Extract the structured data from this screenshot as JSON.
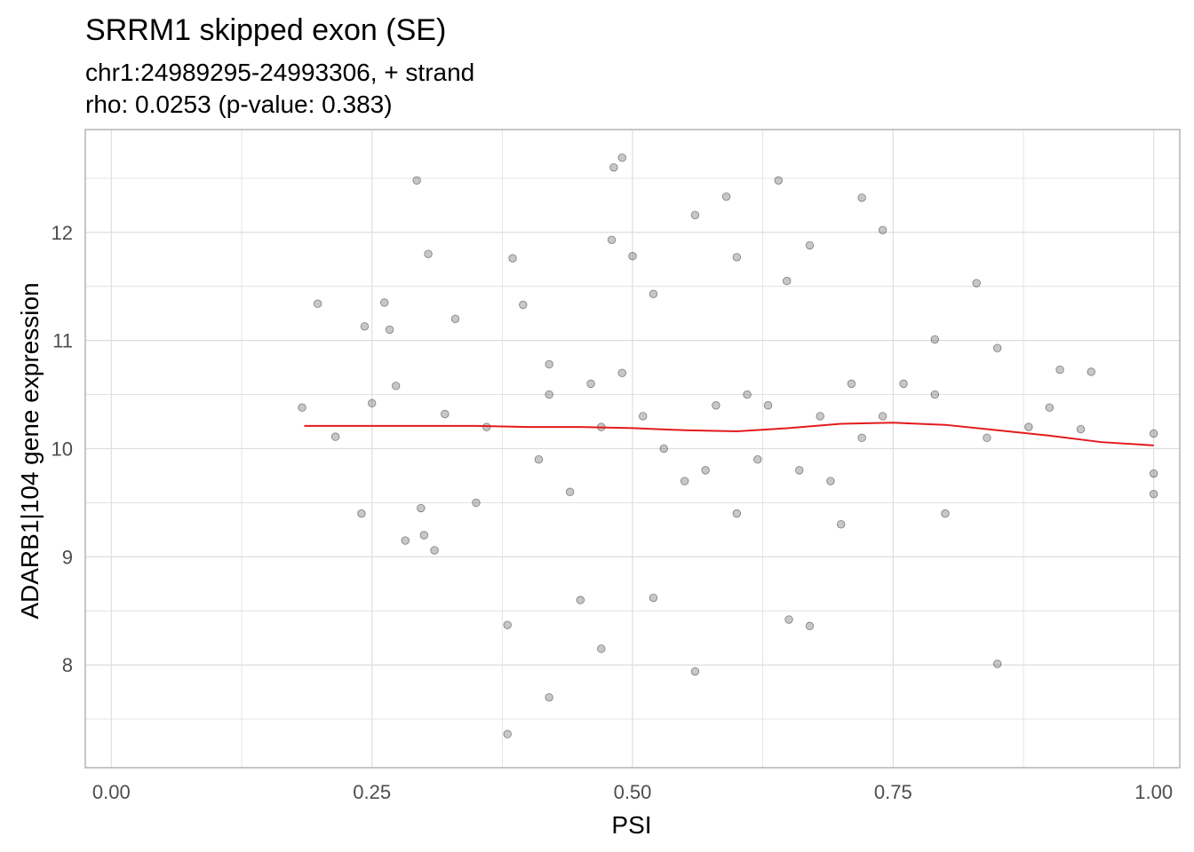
{
  "chart_data": {
    "type": "scatter",
    "title": "SRRM1 skipped exon (SE)",
    "subtitle_lines": [
      "chr1:24989295-24993306, + strand",
      "rho: 0.0253 (p-value: 0.383)"
    ],
    "xlabel": "PSI",
    "ylabel": "ADARB1|104 gene expression",
    "xlim": [
      -0.025,
      1.025
    ],
    "ylim": [
      7.05,
      12.95
    ],
    "x_ticks": [
      0.0,
      0.25,
      0.5,
      0.75,
      1.0
    ],
    "x_tick_labels": [
      "0.00",
      "0.25",
      "0.50",
      "0.75",
      "1.00"
    ],
    "y_ticks": [
      8,
      9,
      10,
      11,
      12
    ],
    "y_tick_labels": [
      "8",
      "9",
      "10",
      "11",
      "12"
    ],
    "grid": true,
    "colors": {
      "points": "#000000",
      "trend": "#e41a1c",
      "grid": "#dedede",
      "panel_border": "#b3b3b3"
    },
    "trend_line": {
      "x": [
        0.185,
        0.25,
        0.3,
        0.35,
        0.4,
        0.45,
        0.5,
        0.55,
        0.6,
        0.65,
        0.7,
        0.75,
        0.8,
        0.85,
        0.9,
        0.95,
        1.0
      ],
      "y": [
        10.21,
        10.21,
        10.21,
        10.21,
        10.2,
        10.2,
        10.19,
        10.17,
        10.16,
        10.19,
        10.23,
        10.24,
        10.22,
        10.17,
        10.12,
        10.06,
        10.03
      ]
    },
    "points": {
      "x": [
        0.183,
        0.198,
        0.215,
        0.24,
        0.243,
        0.25,
        0.262,
        0.267,
        0.273,
        0.282,
        0.293,
        0.297,
        0.304,
        0.31,
        0.32,
        0.33,
        0.385,
        0.395,
        0.42,
        0.48,
        0.482,
        0.49,
        0.5,
        0.52,
        0.56,
        0.59,
        0.6,
        0.64,
        0.648,
        0.67,
        0.72,
        0.74,
        0.79,
        0.83,
        0.85,
        0.9,
        0.91,
        0.93,
        0.94,
        1.0,
        1.0,
        1.0,
        0.38,
        0.42,
        0.47,
        0.56,
        0.85,
        0.38,
        0.65,
        0.67,
        0.52,
        0.45,
        0.3,
        0.35,
        0.6,
        0.7,
        0.8,
        0.42,
        0.47,
        0.53,
        0.58,
        0.62,
        0.68,
        0.72,
        0.76,
        0.44,
        0.49,
        0.55,
        0.61,
        0.66,
        0.71,
        0.36,
        0.41,
        0.46,
        0.51,
        0.57,
        0.63,
        0.69,
        0.74,
        0.79,
        0.84,
        0.88
      ],
      "y": [
        10.38,
        11.34,
        10.11,
        9.4,
        11.13,
        10.42,
        11.35,
        11.1,
        10.58,
        9.15,
        12.48,
        9.45,
        11.8,
        9.06,
        10.32,
        11.2,
        11.76,
        11.33,
        10.78,
        11.93,
        12.6,
        12.69,
        11.78,
        11.43,
        12.16,
        12.33,
        11.77,
        12.48,
        11.55,
        11.88,
        12.32,
        12.02,
        11.01,
        11.53,
        10.93,
        10.38,
        10.73,
        10.18,
        10.71,
        10.14,
        9.77,
        9.58,
        7.36,
        7.7,
        8.15,
        7.94,
        8.01,
        8.37,
        8.42,
        8.36,
        8.62,
        8.6,
        9.2,
        9.5,
        9.4,
        9.3,
        9.4,
        10.5,
        10.2,
        10.0,
        10.4,
        9.9,
        10.3,
        10.1,
        10.6,
        9.6,
        10.7,
        9.7,
        10.5,
        9.8,
        10.6,
        10.2,
        9.9,
        10.6,
        10.3,
        9.8,
        10.4,
        9.7,
        10.3,
        10.5,
        10.1,
        10.2
      ]
    }
  }
}
